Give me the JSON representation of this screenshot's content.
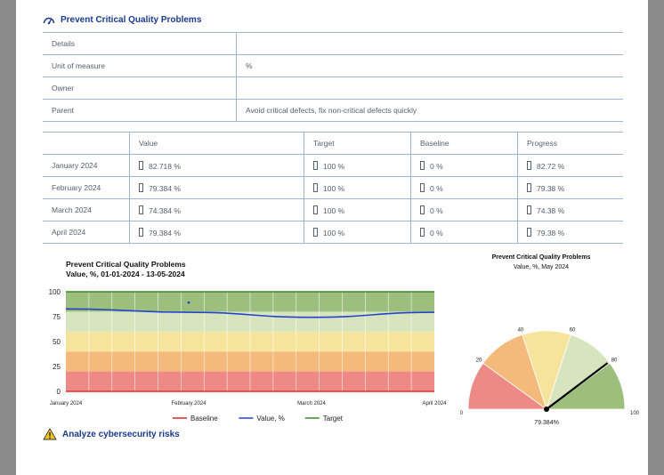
{
  "objective": {
    "title": "Prevent Critical Quality Problems",
    "icon": "gauge-icon"
  },
  "details": [
    {
      "key": "Details",
      "value": ""
    },
    {
      "key": "Unit of measure",
      "value": "%"
    },
    {
      "key": "Owner",
      "value": ""
    },
    {
      "key": "Parent",
      "value": "Avoid critical defects, fix non-critical defects quickly"
    }
  ],
  "values_table": {
    "headers": [
      "",
      "Value",
      "Target",
      "Baseline",
      "Progress"
    ],
    "rows": [
      {
        "period": "January 2024",
        "value": "82.718 %",
        "target": "100 %",
        "baseline": "0 %",
        "progress": "82.72 %"
      },
      {
        "period": "February 2024",
        "value": "79.384 %",
        "target": "100 %",
        "baseline": "0 %",
        "progress": "79.38 %"
      },
      {
        "period": "March 2024",
        "value": "74.384 %",
        "target": "100 %",
        "baseline": "0 %",
        "progress": "74.38 %"
      },
      {
        "period": "April 2024",
        "value": "79.384 %",
        "target": "100 %",
        "baseline": "0 %",
        "progress": "79.38 %"
      }
    ]
  },
  "chart_data": [
    {
      "type": "line",
      "title": "Prevent Critical Quality Problems",
      "subtitle": "Value, %, 01-01-2024 - 13-05-2024",
      "x": [
        "January 2024",
        "February 2024",
        "March 2024",
        "April 2024"
      ],
      "ylim": [
        0,
        100
      ],
      "yticks": [
        0,
        25,
        50,
        75,
        100
      ],
      "bands": [
        {
          "from": 0,
          "to": 20,
          "color": "#ee8a86"
        },
        {
          "from": 20,
          "to": 40,
          "color": "#f4ba7c"
        },
        {
          "from": 40,
          "to": 60,
          "color": "#f7e49c"
        },
        {
          "from": 60,
          "to": 80,
          "color": "#d6e5bd"
        },
        {
          "from": 80,
          "to": 100,
          "color": "#9dbf7d"
        }
      ],
      "series": [
        {
          "name": "Baseline",
          "color": "#e03030",
          "values": [
            0,
            0,
            0,
            0
          ]
        },
        {
          "name": "Value, %",
          "color": "#2244cc",
          "values": [
            82.718,
            79.384,
            74.384,
            79.384
          ]
        },
        {
          "name": "Target",
          "color": "#3a8a2a",
          "values": [
            100,
            100,
            100,
            100
          ]
        }
      ],
      "legend": "bottom",
      "grid": true
    },
    {
      "type": "gauge",
      "title": "Prevent Critical Quality Problems",
      "subtitle": "Value, %, May 2024",
      "value": 79.384,
      "value_label": "79.384%",
      "range": [
        0,
        100
      ],
      "ticks": [
        0,
        20,
        40,
        60,
        80,
        100
      ],
      "bands": [
        {
          "from": 0,
          "to": 20,
          "color": "#ee8a86"
        },
        {
          "from": 20,
          "to": 40,
          "color": "#f4ba7c"
        },
        {
          "from": 40,
          "to": 60,
          "color": "#f7e49c"
        },
        {
          "from": 60,
          "to": 80,
          "color": "#d6e5bd"
        },
        {
          "from": 80,
          "to": 100,
          "color": "#9dbf7d"
        }
      ]
    }
  ],
  "next_item": {
    "title": "Analyze cybersecurity risks",
    "icon": "warning-icon"
  }
}
